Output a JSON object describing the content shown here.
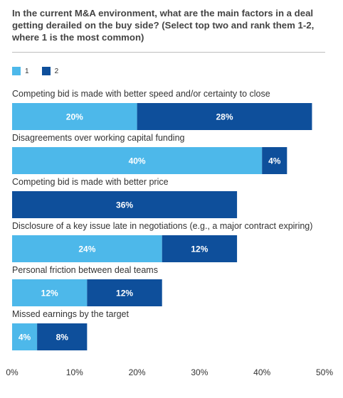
{
  "chart_data": {
    "type": "bar",
    "orientation": "horizontal",
    "stacked": true,
    "title": "In the current M&A environment, what are the main factors in a deal getting derailed on the buy side? (Select top two and rank them 1-2, where 1 is the most common)",
    "categories": [
      "Competing bid is made with better speed and/or certainty to close",
      "Disagreements over working capital funding",
      "Competing bid is made with better price",
      "Disclosure of a key issue late in negotiations (e.g., a major contract expiring)",
      "Personal friction between deal teams",
      "Missed earnings by the target"
    ],
    "series": [
      {
        "name": "1",
        "color": "#4db8ea",
        "values": [
          20,
          40,
          0,
          24,
          12,
          4
        ]
      },
      {
        "name": "2",
        "color": "#0e4f9b",
        "values": [
          28,
          4,
          36,
          12,
          12,
          8
        ]
      }
    ],
    "xlim": [
      0,
      50
    ],
    "xticks": [
      "0%",
      "10%",
      "20%",
      "30%",
      "40%",
      "50%"
    ],
    "xtick_values": [
      0,
      10,
      20,
      30,
      40,
      50
    ],
    "value_suffix": "%",
    "legend": "top-left",
    "grid": false
  }
}
